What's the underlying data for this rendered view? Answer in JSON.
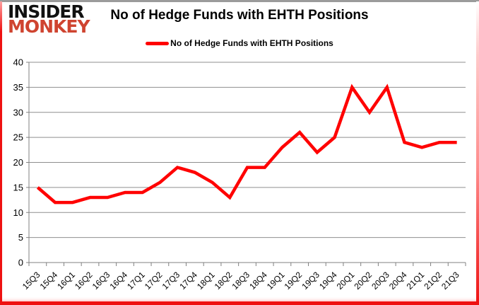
{
  "logo": {
    "line1": "INSIDER",
    "line2": "MONKEY"
  },
  "header": {
    "title": "No of Hedge Funds with EHTH Positions"
  },
  "legend": {
    "label": "No of Hedge Funds with EHTH Positions"
  },
  "colors": {
    "line_red": "#ff0000",
    "logo_red": "#cf4430",
    "frame_gray": "#9b9b9b",
    "frame_red": "#ee1111",
    "grid_gray": "#8f8f8f",
    "axis_gray": "#808080",
    "text_black": "#000000"
  },
  "chart_data": {
    "type": "line",
    "title": "No of Hedge Funds with EHTH Positions",
    "xlabel": "",
    "ylabel": "",
    "categories": [
      "15Q3",
      "15Q4",
      "16Q1",
      "16Q2",
      "16Q3",
      "16Q4",
      "17Q1",
      "17Q2",
      "17Q3",
      "17Q4",
      "18Q1",
      "18Q2",
      "18Q3",
      "18Q4",
      "19Q1",
      "19Q2",
      "19Q3",
      "19Q4",
      "20Q1",
      "20Q2",
      "20Q3",
      "20Q4",
      "21Q1",
      "21Q2",
      "21Q3"
    ],
    "series": [
      {
        "name": "No of Hedge Funds with EHTH Positions",
        "color": "#ff0000",
        "values": [
          15,
          12,
          12,
          13,
          13,
          14,
          14,
          16,
          19,
          18,
          16,
          13,
          19,
          19,
          23,
          26,
          22,
          25,
          35,
          30,
          35,
          24,
          23,
          24,
          24
        ]
      }
    ],
    "ylim": [
      0,
      40
    ],
    "ytick_step": 5,
    "grid": true,
    "legend_position": "top"
  }
}
